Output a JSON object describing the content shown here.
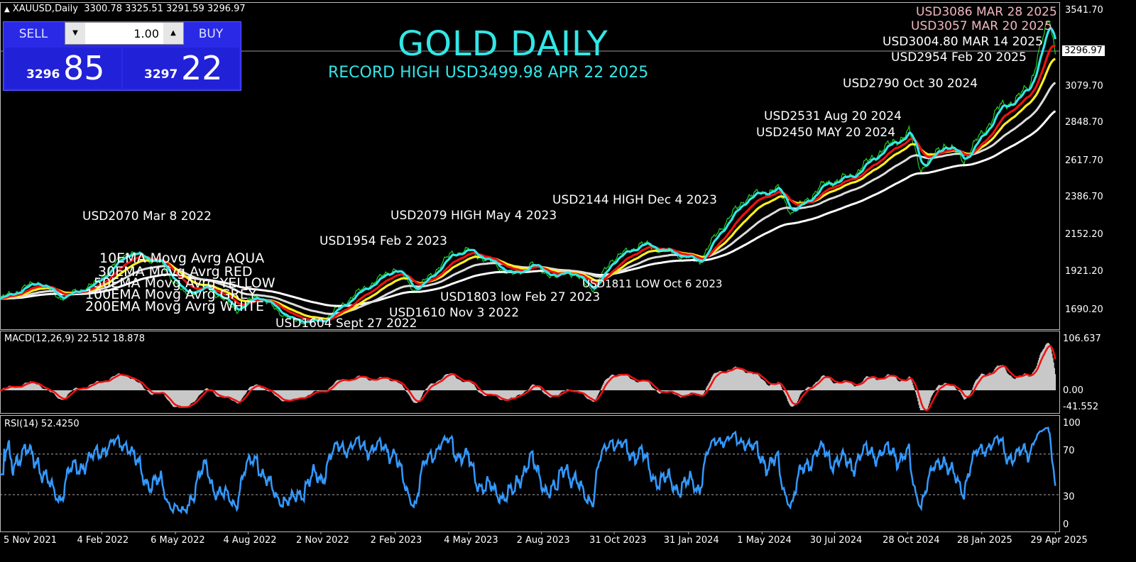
{
  "header": {
    "symbol": "XAUUSD,Daily",
    "ohlc": "3300.78 3325.51 3291.59 3296.97",
    "arrow_icon": "triangle-up-icon"
  },
  "trade_panel": {
    "sell_label": "SELL",
    "buy_label": "BUY",
    "lot_value": "1.00",
    "sell_big": "3296",
    "sell_small": "85",
    "buy_big": "3297",
    "buy_small": "22",
    "panel_color": "#2a2ae6"
  },
  "chart_data": [
    {
      "type": "line",
      "title": "GOLD DAILY",
      "subtitle": "RECORD HIGH USD3499.98  APR 22 2025",
      "ylim": [
        1690.2,
        3541.7
      ],
      "y_ticks": [
        "3541.70",
        "3079.70",
        "2848.70",
        "2617.70",
        "2386.70",
        "2152.20",
        "1921.20",
        "1690.20"
      ],
      "current_price": "3296.97",
      "x_ticks": [
        "5 Nov 2021",
        "4 Feb 2022",
        "6 May 2022",
        "4 Aug 2022",
        "2 Nov 2022",
        "2 Feb 2023",
        "4 May 2023",
        "2 Aug 2023",
        "31 Oct 2023",
        "31 Jan 2024",
        "1 May 2024",
        "30 Jul 2024",
        "28 Oct 2024",
        "28 Jan 2025",
        "29 Apr 2025"
      ],
      "x_tick_dates": [
        "2021-11-05",
        "2022-02-04",
        "2022-05-06",
        "2022-08-04",
        "2022-11-02",
        "2023-02-02",
        "2023-05-04",
        "2023-08-02",
        "2023-10-31",
        "2024-01-31",
        "2024-05-01",
        "2024-07-30",
        "2024-10-28",
        "2025-01-28",
        "2025-04-29"
      ],
      "price_series": {
        "x": [
          "2021-10-01",
          "2021-11-16",
          "2021-12-15",
          "2022-01-25",
          "2022-03-08",
          "2022-04-18",
          "2022-05-16",
          "2022-06-15",
          "2022-07-21",
          "2022-08-15",
          "2022-09-27",
          "2022-11-03",
          "2022-12-15",
          "2023-02-02",
          "2023-02-27",
          "2023-04-13",
          "2023-05-04",
          "2023-06-29",
          "2023-07-20",
          "2023-08-21",
          "2023-09-01",
          "2023-10-06",
          "2023-10-27",
          "2023-12-04",
          "2024-02-14",
          "2024-03-08",
          "2024-04-12",
          "2024-05-20",
          "2024-06-07",
          "2024-07-17",
          "2024-08-20",
          "2024-09-26",
          "2024-10-30",
          "2024-11-14",
          "2024-12-12",
          "2025-01-06",
          "2025-02-20",
          "2025-03-14",
          "2025-03-28",
          "2025-04-22",
          "2025-04-29"
        ],
        "y": [
          1760,
          1865,
          1765,
          1850,
          2050,
          1980,
          1790,
          1830,
          1690,
          1780,
          1625,
          1620,
          1790,
          1950,
          1810,
          2040,
          2060,
          1905,
          1975,
          1885,
          1940,
          1820,
          2000,
          2100,
          1990,
          2180,
          2390,
          2440,
          2290,
          2470,
          2520,
          2680,
          2790,
          2560,
          2720,
          2620,
          2950,
          3000,
          3086,
          3500,
          3296.97
        ],
        "color": "#22cc22"
      },
      "moving_averages": [
        {
          "name": "10EMA",
          "period": 10,
          "color": "#33e6e6"
        },
        {
          "name": "30EMA",
          "period": 30,
          "color": "#ee1111"
        },
        {
          "name": "50EMA",
          "period": 50,
          "color": "#ffee22"
        },
        {
          "name": "100EMA",
          "period": 100,
          "color": "#dddddd"
        },
        {
          "name": "200EMA",
          "period": 200,
          "color": "#ffffff"
        }
      ],
      "annotations": [
        {
          "text": "USD3086 MAR 28 2025",
          "color": "#f0b8c0"
        },
        {
          "text": "USD3057 MAR 20 2025",
          "color": "#f0b8c0"
        },
        {
          "text": "USD3004.80 MAR 14 2025"
        },
        {
          "text": "USD2954  Feb 20 2025"
        },
        {
          "text": "USD2790  Oct 30 2024"
        },
        {
          "text": "USD2531  Aug 20 2024"
        },
        {
          "text": "USD2450  MAY 20 2024"
        },
        {
          "text": "USD2144 HIGH Dec 4 2023"
        },
        {
          "text": "USD2079 HIGH May 4 2023"
        },
        {
          "text": "USD2070 Mar 8 2022"
        },
        {
          "text": "USD1954 Feb 2 2023"
        },
        {
          "text": "USD1811 LOW Oct 6 2023"
        },
        {
          "text": "USD1803 low Feb 27 2023"
        },
        {
          "text": "USD1610 Nov 3 2022"
        },
        {
          "text": "USD1604 Sept 27 2022"
        }
      ],
      "legend": [
        "10EMA Movg Avrg AQUA",
        "30EMA Movg Avrg RED",
        "50EMA Movg Avrg YELLOW",
        "100EMA Movg Avrg GREY",
        "200EMA Movg Avrg WHITE"
      ]
    },
    {
      "type": "bar",
      "title": "MACD(12,26,9) 22.512 18.878",
      "ylim": [
        -41.552,
        106.637
      ],
      "y_ticks": [
        "106.637",
        "0.00",
        "-41.552"
      ],
      "histogram_color": "#c8c8c8",
      "signal_color": "#ee1111"
    },
    {
      "type": "line",
      "title": "RSI(14) 52.4250",
      "ylim": [
        0,
        100
      ],
      "y_ticks": [
        "100",
        "70",
        "30",
        "0"
      ],
      "levels": [
        70,
        30
      ],
      "color": "#3399ff"
    }
  ]
}
